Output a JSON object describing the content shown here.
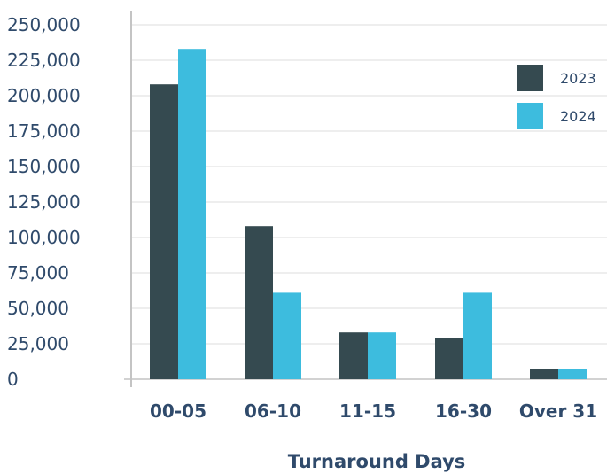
{
  "chart_data": {
    "type": "bar",
    "categories": [
      "00-05",
      "06-10",
      "11-15",
      "16-30",
      "Over 31"
    ],
    "series": [
      {
        "name": "2023",
        "values": [
          208000,
          108000,
          33000,
          29000,
          7000
        ],
        "color": "#354a50"
      },
      {
        "name": "2024",
        "values": [
          233000,
          61000,
          33000,
          61000,
          7000
        ],
        "color": "#3dbcde"
      }
    ],
    "title": "",
    "xlabel": "Turnaround Days",
    "ylabel": "",
    "ylim": [
      0,
      250000
    ],
    "yticks": [
      "0",
      "25,000",
      "50,000",
      "75,000",
      "100,000",
      "125,000",
      "150,000",
      "175,000",
      "200,000",
      "225,000",
      "250,000"
    ],
    "grid": true,
    "legend_position": "top-right"
  }
}
